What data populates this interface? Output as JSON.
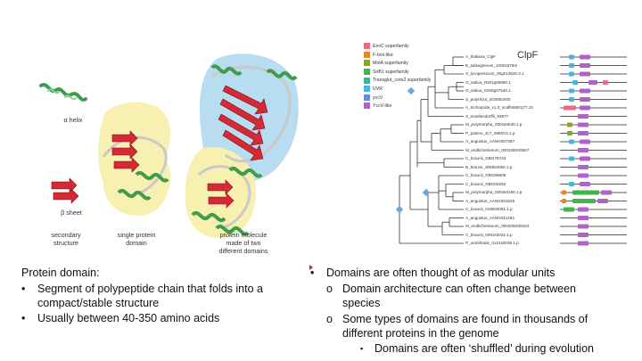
{
  "left_figure": {
    "labels": {
      "alpha_helix": "α helix",
      "beta_sheet": "β sheet",
      "secondary_structure": [
        "secondary",
        "structure"
      ],
      "single_domain": [
        "single protein",
        "domain"
      ],
      "two_domains": [
        "protein molecule",
        "made of two",
        "different domains"
      ]
    }
  },
  "right_figure": {
    "title": "ClpF",
    "legend": [
      {
        "label": "EnvC superfamily",
        "color": "#f06a86"
      },
      {
        "label": "F-box-like",
        "color": "#e08a2a"
      },
      {
        "label": "MotA superfamily",
        "color": "#8aa624"
      },
      {
        "label": "SirB1 superfamily",
        "color": "#3fb54a"
      },
      {
        "label": "Transglut_core2 superfamily",
        "color": "#3ab58f"
      },
      {
        "label": "UVR",
        "color": "#44b6e0"
      },
      {
        "label": "yccV",
        "color": "#6a8ae0"
      },
      {
        "label": "YccV-like",
        "color": "#b062c8"
      }
    ],
    "taxa": [
      "A_thaliana_ClpF",
      "E_salsugineum_10004578m",
      "S_lycopersicum_05g012620.3.1",
      "O_sativa_Os01g55880.1",
      "O_sativa_Os06g07540.1",
      "S_polyrhiza_2G0092000",
      "A_trichopoda_v1.0_scaffold00177.10",
      "S_moellendorffii_93677",
      "M_polymorpha_0001s0530.1.p",
      "P_patens_3c7_3960V3.1.p",
      "A_angustus_AANG007397",
      "M_endlicherianum_000138S00557",
      "C_braunii_GBG78743",
      "B_braunii_3065s0062.1.p",
      "C_braunii_GBG68609",
      "C_braunii_GBG65262",
      "M_polymorpha_0003s0180.1.p",
      "A_angustus_AANG001526",
      "C_braunii_0186s0061.1.p",
      "A_angustus_AANG011254",
      "M_endlicherianum_000205S00034",
      "C_braunii_0091s0032.1.p",
      "P_umbilicalis_0121s0038.1.p"
    ]
  },
  "left_text": {
    "heading": "Protein domain:",
    "bullets": [
      {
        "lines": [
          "Segment of polypeptide chain that folds into a",
          "compact/stable structure"
        ]
      },
      {
        "lines": [
          "Usually between 40-350 amino acids"
        ]
      }
    ],
    "bullet_glyph": "•"
  },
  "right_text": {
    "bullet_glyph": "•",
    "sub_glyph": "o",
    "subsub_glyph": "▪",
    "main": "Domains are often thought of as modular units",
    "sub1": [
      "Domain architecture can often change between",
      "species"
    ],
    "sub2": [
      "Some types of domains are found in thousands of",
      "different proteins in the genome"
    ],
    "subsub": "Domains are often ‘shuffled’ during evolution"
  }
}
